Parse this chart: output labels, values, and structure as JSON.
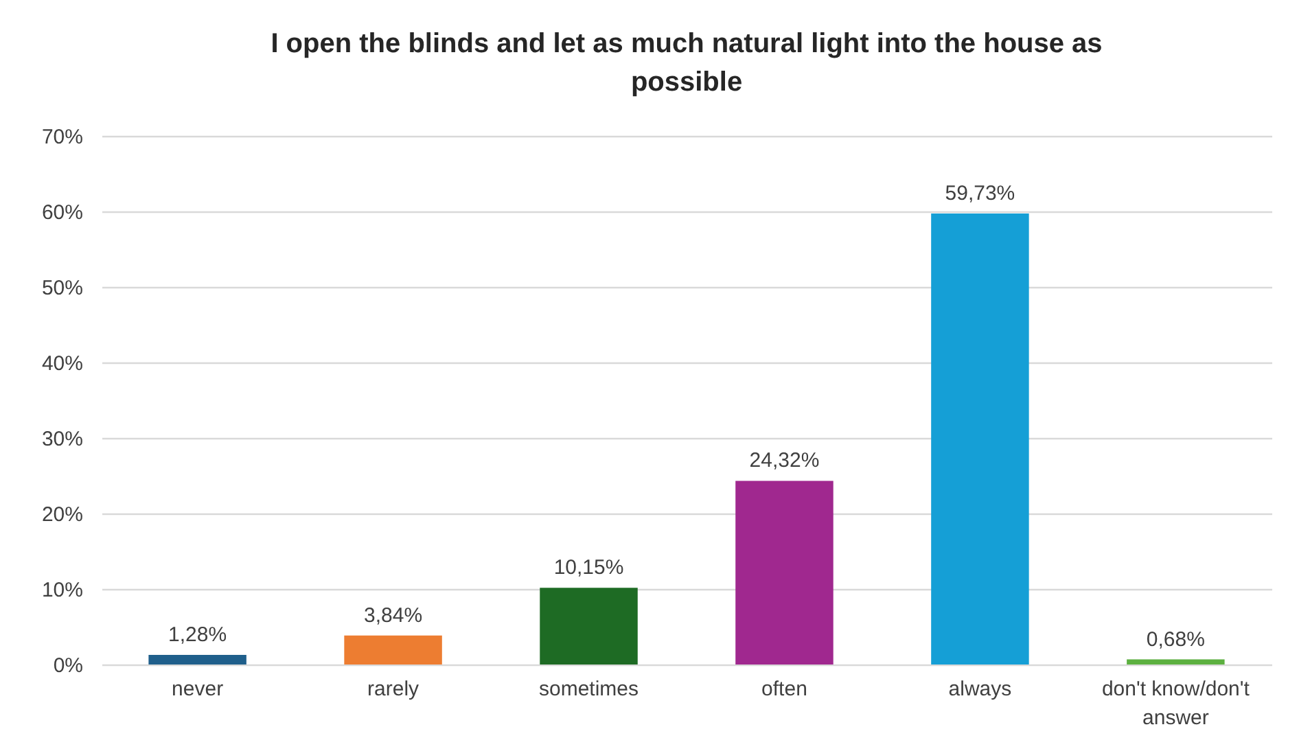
{
  "chart_data": {
    "type": "bar",
    "title": "I open the blinds and let as much natural light into the house as possible",
    "categories": [
      "never",
      "rarely",
      "sometimes",
      "often",
      "always",
      "don't know/don't answer"
    ],
    "values": [
      1.28,
      3.84,
      10.15,
      24.32,
      59.73,
      0.68
    ],
    "colors": [
      "#1f5f8b",
      "#ed7d31",
      "#1e6b24",
      "#a0288f",
      "#159fd6",
      "#5cb040"
    ],
    "value_labels": [
      "1,28%",
      "3,84%",
      "10,15%",
      "24,32%",
      "59,73%",
      "0,68%"
    ],
    "ylim": [
      0,
      70
    ],
    "yticks": [
      {
        "value": 0,
        "label": "0%"
      },
      {
        "value": 10,
        "label": "10%"
      },
      {
        "value": 20,
        "label": "20%"
      },
      {
        "value": 30,
        "label": "30%"
      },
      {
        "value": 40,
        "label": "40%"
      },
      {
        "value": 50,
        "label": "50%"
      },
      {
        "value": 60,
        "label": "60%"
      },
      {
        "value": 70,
        "label": "70%"
      }
    ],
    "grid": "y"
  }
}
